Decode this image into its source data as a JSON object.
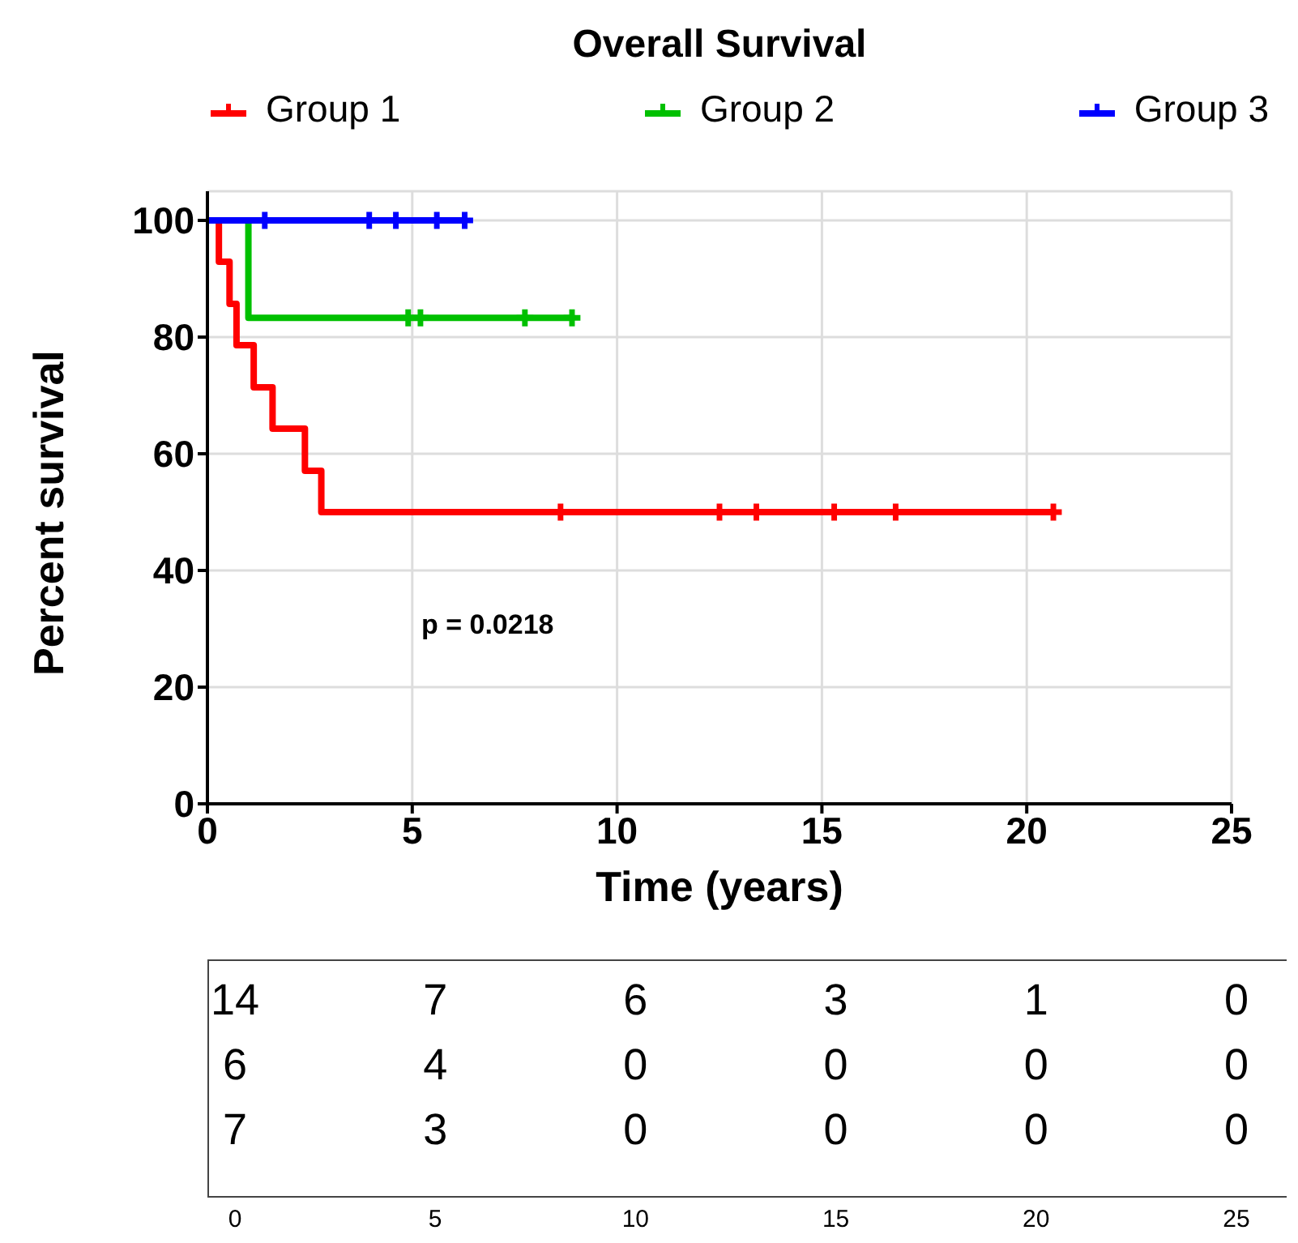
{
  "chart_data": {
    "type": "step",
    "title": "Overall Survival",
    "xlabel": "Time (years)",
    "ylabel": "Percent survival",
    "xlim": [
      0,
      25
    ],
    "xticks": [
      0,
      5,
      10,
      15,
      20,
      25
    ],
    "ylim": [
      0,
      105
    ],
    "yticks": [
      0,
      20,
      40,
      60,
      80,
      100
    ],
    "grid": true,
    "legend": "top",
    "series": [
      {
        "name": "Group 1",
        "color": "#ff0000",
        "x": [
          0,
          0.28,
          0.54,
          0.71,
          1.13,
          1.59,
          2.38,
          2.78,
          8.62,
          12.5,
          13.4,
          15.3,
          16.8,
          20.65
        ],
        "values": [
          100,
          92.9,
          85.7,
          78.6,
          71.4,
          64.3,
          57.1,
          50,
          50,
          50,
          50,
          50,
          50,
          50
        ]
      },
      {
        "name": "Group 2",
        "color": "#00c000",
        "x": [
          0,
          1.0,
          4.9,
          5.2,
          7.75,
          8.9
        ],
        "values": [
          100,
          83.3,
          83.3,
          83.3,
          83.3,
          83.3
        ]
      },
      {
        "name": "Group 3",
        "color": "#0000ff",
        "x": [
          0,
          1.4,
          3.95,
          4.6,
          5.6,
          6.28
        ],
        "values": [
          100,
          100,
          100,
          100,
          100,
          100
        ]
      },
      {
        "type": "scatter",
        "marker": "cross",
        "color": "#ff0000",
        "x": [
          8.62,
          12.5,
          13.4,
          15.3,
          16.8,
          20.65
        ],
        "values": [
          50,
          50,
          50,
          50,
          50,
          50
        ]
      },
      {
        "type": "scatter",
        "marker": "cross",
        "color": "#00c000",
        "x": [
          4.9,
          5.2,
          7.75,
          8.9
        ],
        "values": [
          83.3,
          83.3,
          83.3,
          83.3
        ]
      },
      {
        "type": "scatter",
        "marker": "cross",
        "color": "#0000ff",
        "x": [
          1.4,
          3.95,
          4.6,
          5.6,
          6.28
        ],
        "values": [
          100,
          100,
          100,
          100,
          100
        ]
      }
    ],
    "annotations": [
      "p = 0.0218",
      "14",
      "7",
      "6",
      "3",
      "1",
      "0",
      "6",
      "4",
      "0",
      "0",
      "0",
      "0",
      "7",
      "3",
      "0",
      "0",
      "0",
      "0",
      "0",
      "5",
      "10",
      "15",
      "20",
      "25"
    ]
  }
}
